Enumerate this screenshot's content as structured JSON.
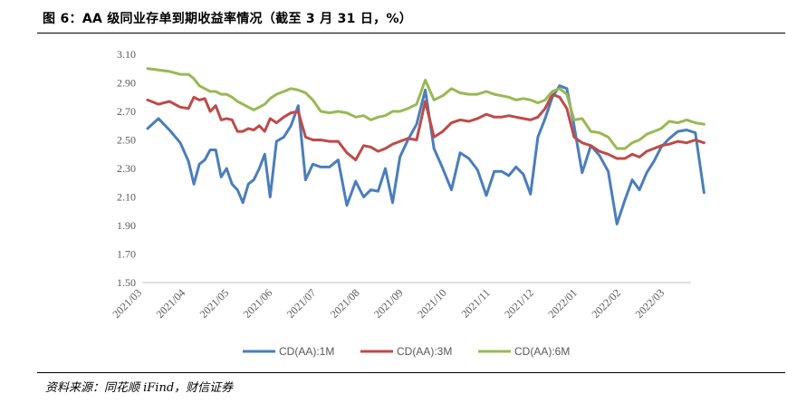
{
  "header": {
    "title": "图 6：AA 级同业存单到期收益率情况（截至 3 月 31 日，%）"
  },
  "footer": {
    "source": "资料来源：同花顺 iFind，财信证券"
  },
  "chart_data": {
    "type": "line",
    "title": "",
    "xlabel": "",
    "ylabel": "",
    "ylim": [
      1.5,
      3.1
    ],
    "yticks": [
      "3.10",
      "2.90",
      "2.70",
      "2.50",
      "2.30",
      "2.10",
      "1.90",
      "1.70",
      "1.50"
    ],
    "x_tick_labels": [
      "2021/03",
      "2021/04",
      "2021/05",
      "2021/06",
      "2021/07",
      "2021/08",
      "2021/09",
      "2021/10",
      "2021/11",
      "2021/12",
      "2022/01",
      "2022/02",
      "2022/03"
    ],
    "grid": false,
    "legend_position": "bottom",
    "series": [
      {
        "name": "CD(AA):1M",
        "color": "#4a7ebb",
        "points": [
          [
            "2021/03",
            2.58
          ],
          [
            "2021/03",
            2.65
          ],
          [
            "2021/03",
            2.57
          ],
          [
            "2021/03",
            2.48
          ],
          [
            "2021/04",
            2.35
          ],
          [
            "2021/04",
            2.19
          ],
          [
            "2021/04",
            2.33
          ],
          [
            "2021/04",
            2.36
          ],
          [
            "2021/04",
            2.43
          ],
          [
            "2021/04",
            2.43
          ],
          [
            "2021/04",
            2.24
          ],
          [
            "2021/04",
            2.3
          ],
          [
            "2021/05",
            2.19
          ],
          [
            "2021/05",
            2.15
          ],
          [
            "2021/05",
            2.06
          ],
          [
            "2021/05",
            2.19
          ],
          [
            "2021/05",
            2.22
          ],
          [
            "2021/05",
            2.3
          ],
          [
            "2021/05",
            2.4
          ],
          [
            "2021/05",
            2.1
          ],
          [
            "2021/06",
            2.49
          ],
          [
            "2021/06",
            2.52
          ],
          [
            "2021/06",
            2.6
          ],
          [
            "2021/06",
            2.74
          ],
          [
            "2021/06",
            2.22
          ],
          [
            "2021/06",
            2.33
          ],
          [
            "2021/07",
            2.31
          ],
          [
            "2021/07",
            2.31
          ],
          [
            "2021/07",
            2.36
          ],
          [
            "2021/07",
            2.04
          ],
          [
            "2021/07",
            2.21
          ],
          [
            "2021/08",
            2.1
          ],
          [
            "2021/08",
            2.15
          ],
          [
            "2021/08",
            2.14
          ],
          [
            "2021/08",
            2.3
          ],
          [
            "2021/08",
            2.06
          ],
          [
            "2021/08",
            2.38
          ],
          [
            "2021/09",
            2.5
          ],
          [
            "2021/09",
            2.61
          ],
          [
            "2021/09",
            2.85
          ],
          [
            "2021/09",
            2.44
          ],
          [
            "2021/09",
            2.3
          ],
          [
            "2021/10",
            2.15
          ],
          [
            "2021/10",
            2.41
          ],
          [
            "2021/10",
            2.37
          ],
          [
            "2021/10",
            2.29
          ],
          [
            "2021/10",
            2.11
          ],
          [
            "2021/11",
            2.28
          ],
          [
            "2021/11",
            2.28
          ],
          [
            "2021/11",
            2.25
          ],
          [
            "2021/11",
            2.31
          ],
          [
            "2021/11",
            2.26
          ],
          [
            "2021/11",
            2.12
          ],
          [
            "2021/12",
            2.52
          ],
          [
            "2021/12",
            2.65
          ],
          [
            "2021/12",
            2.8
          ],
          [
            "2021/12",
            2.88
          ],
          [
            "2021/12",
            2.86
          ],
          [
            "2021/12",
            2.6
          ],
          [
            "2022/01",
            2.27
          ],
          [
            "2022/01",
            2.46
          ],
          [
            "2022/01",
            2.39
          ],
          [
            "2022/01",
            2.28
          ],
          [
            "2022/01",
            1.91
          ],
          [
            "2022/02",
            2.08
          ],
          [
            "2022/02",
            2.22
          ],
          [
            "2022/02",
            2.15
          ],
          [
            "2022/02",
            2.27
          ],
          [
            "2022/02",
            2.35
          ],
          [
            "2022/02",
            2.45
          ],
          [
            "2022/03",
            2.51
          ],
          [
            "2022/03",
            2.56
          ],
          [
            "2022/03",
            2.57
          ],
          [
            "2022/03",
            2.55
          ],
          [
            "2022/03",
            2.13
          ]
        ]
      },
      {
        "name": "CD(AA):3M",
        "color": "#be4b48",
        "points": [
          [
            "2021/03",
            2.78
          ],
          [
            "2021/03",
            2.75
          ],
          [
            "2021/03",
            2.77
          ],
          [
            "2021/03",
            2.73
          ],
          [
            "2021/04",
            2.72
          ],
          [
            "2021/04",
            2.8
          ],
          [
            "2021/04",
            2.78
          ],
          [
            "2021/04",
            2.79
          ],
          [
            "2021/04",
            2.7
          ],
          [
            "2021/04",
            2.74
          ],
          [
            "2021/04",
            2.64
          ],
          [
            "2021/04",
            2.65
          ],
          [
            "2021/05",
            2.64
          ],
          [
            "2021/05",
            2.56
          ],
          [
            "2021/05",
            2.56
          ],
          [
            "2021/05",
            2.58
          ],
          [
            "2021/05",
            2.57
          ],
          [
            "2021/05",
            2.6
          ],
          [
            "2021/05",
            2.56
          ],
          [
            "2021/05",
            2.65
          ],
          [
            "2021/06",
            2.62
          ],
          [
            "2021/06",
            2.66
          ],
          [
            "2021/06",
            2.69
          ],
          [
            "2021/06",
            2.7
          ],
          [
            "2021/06",
            2.52
          ],
          [
            "2021/06",
            2.5
          ],
          [
            "2021/07",
            2.5
          ],
          [
            "2021/07",
            2.49
          ],
          [
            "2021/07",
            2.49
          ],
          [
            "2021/07",
            2.41
          ],
          [
            "2021/07",
            2.36
          ],
          [
            "2021/08",
            2.46
          ],
          [
            "2021/08",
            2.45
          ],
          [
            "2021/08",
            2.42
          ],
          [
            "2021/08",
            2.44
          ],
          [
            "2021/08",
            2.47
          ],
          [
            "2021/08",
            2.49
          ],
          [
            "2021/09",
            2.51
          ],
          [
            "2021/09",
            2.5
          ],
          [
            "2021/09",
            2.77
          ],
          [
            "2021/09",
            2.52
          ],
          [
            "2021/09",
            2.56
          ],
          [
            "2021/10",
            2.62
          ],
          [
            "2021/10",
            2.64
          ],
          [
            "2021/10",
            2.63
          ],
          [
            "2021/10",
            2.65
          ],
          [
            "2021/10",
            2.68
          ],
          [
            "2021/11",
            2.66
          ],
          [
            "2021/11",
            2.66
          ],
          [
            "2021/11",
            2.67
          ],
          [
            "2021/11",
            2.66
          ],
          [
            "2021/11",
            2.65
          ],
          [
            "2021/11",
            2.64
          ],
          [
            "2021/12",
            2.66
          ],
          [
            "2021/12",
            2.72
          ],
          [
            "2021/12",
            2.82
          ],
          [
            "2021/12",
            2.8
          ],
          [
            "2021/12",
            2.72
          ],
          [
            "2021/12",
            2.52
          ],
          [
            "2022/01",
            2.48
          ],
          [
            "2022/01",
            2.46
          ],
          [
            "2022/01",
            2.42
          ],
          [
            "2022/01",
            2.4
          ],
          [
            "2022/01",
            2.37
          ],
          [
            "2022/02",
            2.37
          ],
          [
            "2022/02",
            2.4
          ],
          [
            "2022/02",
            2.38
          ],
          [
            "2022/02",
            2.42
          ],
          [
            "2022/02",
            2.44
          ],
          [
            "2022/02",
            2.46
          ],
          [
            "2022/03",
            2.47
          ],
          [
            "2022/03",
            2.49
          ],
          [
            "2022/03",
            2.48
          ],
          [
            "2022/03",
            2.5
          ],
          [
            "2022/03",
            2.48
          ]
        ]
      },
      {
        "name": "CD(AA):6M",
        "color": "#98b954",
        "points": [
          [
            "2021/03",
            3.0
          ],
          [
            "2021/03",
            2.99
          ],
          [
            "2021/03",
            2.98
          ],
          [
            "2021/03",
            2.96
          ],
          [
            "2021/04",
            2.96
          ],
          [
            "2021/04",
            2.93
          ],
          [
            "2021/04",
            2.88
          ],
          [
            "2021/04",
            2.86
          ],
          [
            "2021/04",
            2.84
          ],
          [
            "2021/04",
            2.84
          ],
          [
            "2021/04",
            2.82
          ],
          [
            "2021/04",
            2.82
          ],
          [
            "2021/05",
            2.8
          ],
          [
            "2021/05",
            2.77
          ],
          [
            "2021/05",
            2.75
          ],
          [
            "2021/05",
            2.73
          ],
          [
            "2021/05",
            2.71
          ],
          [
            "2021/05",
            2.73
          ],
          [
            "2021/05",
            2.75
          ],
          [
            "2021/05",
            2.79
          ],
          [
            "2021/06",
            2.82
          ],
          [
            "2021/06",
            2.84
          ],
          [
            "2021/06",
            2.86
          ],
          [
            "2021/06",
            2.85
          ],
          [
            "2021/06",
            2.83
          ],
          [
            "2021/06",
            2.78
          ],
          [
            "2021/07",
            2.7
          ],
          [
            "2021/07",
            2.69
          ],
          [
            "2021/07",
            2.7
          ],
          [
            "2021/07",
            2.69
          ],
          [
            "2021/07",
            2.66
          ],
          [
            "2021/08",
            2.67
          ],
          [
            "2021/08",
            2.64
          ],
          [
            "2021/08",
            2.66
          ],
          [
            "2021/08",
            2.67
          ],
          [
            "2021/08",
            2.7
          ],
          [
            "2021/08",
            2.7
          ],
          [
            "2021/09",
            2.72
          ],
          [
            "2021/09",
            2.75
          ],
          [
            "2021/09",
            2.92
          ],
          [
            "2021/09",
            2.78
          ],
          [
            "2021/09",
            2.81
          ],
          [
            "2021/10",
            2.86
          ],
          [
            "2021/10",
            2.83
          ],
          [
            "2021/10",
            2.82
          ],
          [
            "2021/10",
            2.82
          ],
          [
            "2021/10",
            2.84
          ],
          [
            "2021/11",
            2.82
          ],
          [
            "2021/11",
            2.81
          ],
          [
            "2021/11",
            2.8
          ],
          [
            "2021/11",
            2.78
          ],
          [
            "2021/11",
            2.79
          ],
          [
            "2021/11",
            2.78
          ],
          [
            "2021/12",
            2.76
          ],
          [
            "2021/12",
            2.78
          ],
          [
            "2021/12",
            2.84
          ],
          [
            "2021/12",
            2.86
          ],
          [
            "2021/12",
            2.82
          ],
          [
            "2021/12",
            2.64
          ],
          [
            "2022/01",
            2.65
          ],
          [
            "2022/01",
            2.56
          ],
          [
            "2022/01",
            2.55
          ],
          [
            "2022/01",
            2.52
          ],
          [
            "2022/01",
            2.44
          ],
          [
            "2022/02",
            2.44
          ],
          [
            "2022/02",
            2.48
          ],
          [
            "2022/02",
            2.5
          ],
          [
            "2022/02",
            2.54
          ],
          [
            "2022/02",
            2.56
          ],
          [
            "2022/02",
            2.58
          ],
          [
            "2022/03",
            2.63
          ],
          [
            "2022/03",
            2.62
          ],
          [
            "2022/03",
            2.64
          ],
          [
            "2022/03",
            2.62
          ],
          [
            "2022/03",
            2.61
          ]
        ]
      }
    ]
  }
}
